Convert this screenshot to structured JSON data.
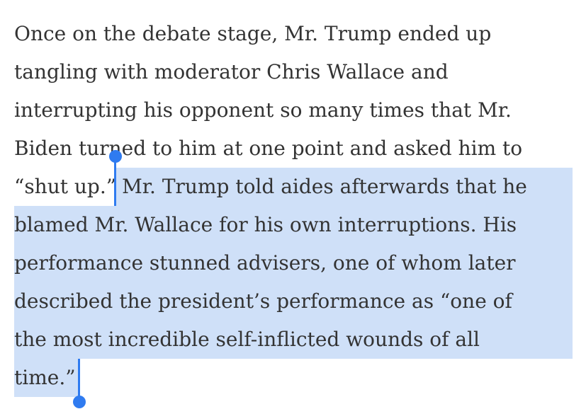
{
  "article": {
    "plain_lines": [
      "Once on the debate stage, Mr. Trump ended up",
      "tangling with moderator Chris Wallace and",
      "interrupting his opponent so many times that Mr.",
      "Biden turned to him at one point and asked him to"
    ],
    "lead_in": "“shut up.”",
    "selected_lines": [
      "Mr. Trump told aides afterwards that he",
      "blamed Mr. Wallace for his own interruptions. His",
      "performance stunned advisers, one of whom later",
      "described the president’s performance as “one of",
      "the most incredible self-inflicted wounds of all",
      "time.”"
    ]
  }
}
